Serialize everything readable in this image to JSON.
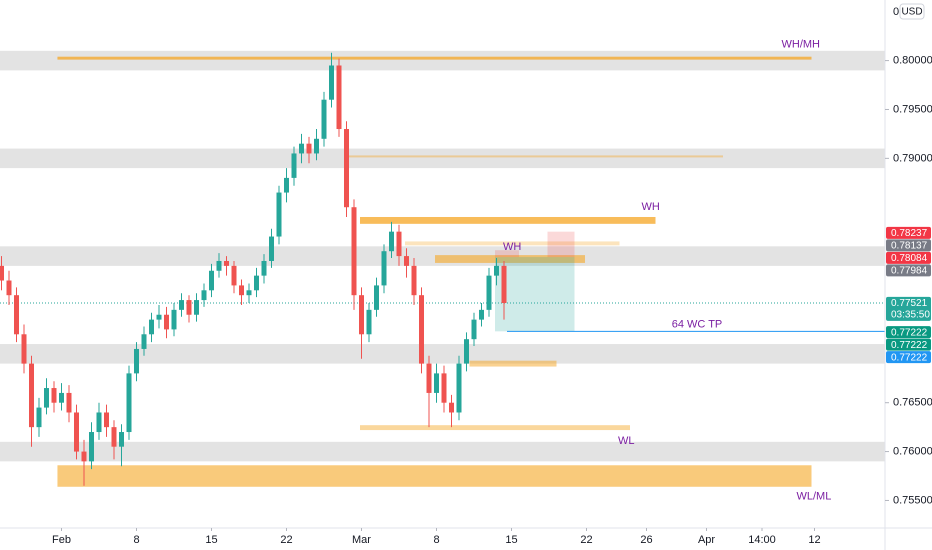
{
  "chart_data": {
    "type": "candlestick",
    "currency": "USD",
    "axis_top_label": "0.",
    "up_color": "#26a69a",
    "down_color": "#ef5350",
    "xlim": [
      -4.1,
      54.9
    ],
    "ylim": [
      0.753,
      0.8062
    ],
    "xticks": [
      {
        "value": 0,
        "label": "Feb"
      },
      {
        "value": 5,
        "label": "8"
      },
      {
        "value": 10,
        "label": "15"
      },
      {
        "value": 15,
        "label": "22"
      },
      {
        "value": 20,
        "label": "Mar"
      },
      {
        "value": 25,
        "label": "8"
      },
      {
        "value": 30,
        "label": "15"
      },
      {
        "value": 35,
        "label": "22"
      },
      {
        "value": 39,
        "label": "26"
      },
      {
        "value": 43,
        "label": "Apr"
      },
      {
        "value": 46.7,
        "label": "14:00"
      },
      {
        "value": 50.2,
        "label": "12"
      }
    ],
    "yticks": [
      {
        "value": 0.755,
        "label": "0.75500"
      },
      {
        "value": 0.76,
        "label": "0.76000"
      },
      {
        "value": 0.765,
        "label": "0.76500"
      },
      {
        "value": 0.79,
        "label": "0.79000"
      },
      {
        "value": 0.795,
        "label": "0.79500"
      },
      {
        "value": 0.8,
        "label": "0.80000"
      }
    ],
    "x": [
      -4,
      -3.5,
      -3,
      -2.5,
      -2,
      -1.5,
      -1,
      -0.5,
      0,
      0.5,
      1,
      1.5,
      2,
      2.5,
      3,
      3.5,
      4,
      4.5,
      5,
      5.5,
      6,
      6.5,
      7,
      7.5,
      8,
      8.5,
      9,
      9.5,
      10,
      10.5,
      11,
      11.5,
      12,
      12.5,
      13,
      13.5,
      14,
      14.5,
      15,
      15.5,
      16,
      16.5,
      17,
      17.5,
      18,
      18.5,
      19,
      19.5,
      20,
      20.5,
      21,
      21.5,
      22,
      22.5,
      23,
      23.5,
      24,
      24.5,
      25,
      25.5,
      26,
      26.5,
      27,
      27.5,
      28,
      28.5,
      29,
      29.5
    ],
    "open": [
      0.779,
      0.7775,
      0.776,
      0.772,
      0.769,
      0.7625,
      0.7645,
      0.7665,
      0.765,
      0.766,
      0.764,
      0.76,
      0.759,
      0.762,
      0.764,
      0.7625,
      0.7605,
      0.762,
      0.768,
      0.7705,
      0.772,
      0.7735,
      0.774,
      0.7725,
      0.7745,
      0.7755,
      0.774,
      0.7755,
      0.7765,
      0.7785,
      0.7795,
      0.779,
      0.777,
      0.776,
      0.7765,
      0.778,
      0.7795,
      0.782,
      0.7865,
      0.788,
      0.7905,
      0.7915,
      0.7905,
      0.792,
      0.796,
      0.7995,
      0.793,
      0.785,
      0.776,
      0.772,
      0.7745,
      0.777,
      0.7805,
      0.7825,
      0.78,
      0.779,
      0.776,
      0.769,
      0.766,
      0.768,
      0.765,
      0.764,
      0.769,
      0.7715,
      0.7735,
      0.7745,
      0.778,
      0.779
    ],
    "high": [
      0.78,
      0.7785,
      0.7768,
      0.773,
      0.7698,
      0.7655,
      0.7675,
      0.7672,
      0.767,
      0.7668,
      0.7648,
      0.7612,
      0.763,
      0.765,
      0.7648,
      0.7632,
      0.7628,
      0.7688,
      0.7712,
      0.7728,
      0.7742,
      0.775,
      0.7748,
      0.7752,
      0.7762,
      0.776,
      0.7762,
      0.7772,
      0.7792,
      0.7803,
      0.78,
      0.7795,
      0.7776,
      0.7772,
      0.7788,
      0.7802,
      0.7828,
      0.7872,
      0.789,
      0.7912,
      0.7925,
      0.7922,
      0.793,
      0.7968,
      0.8008,
      0.8002,
      0.7938,
      0.7858,
      0.7768,
      0.7752,
      0.7778,
      0.7812,
      0.7835,
      0.7832,
      0.7808,
      0.7798,
      0.7768,
      0.7698,
      0.769,
      0.7688,
      0.7658,
      0.7698,
      0.7722,
      0.7742,
      0.7752,
      0.7788,
      0.7798,
      0.7795
    ],
    "low": [
      0.7765,
      0.775,
      0.7712,
      0.768,
      0.7605,
      0.7615,
      0.7638,
      0.764,
      0.7642,
      0.763,
      0.7592,
      0.7565,
      0.7582,
      0.7612,
      0.7615,
      0.7592,
      0.7585,
      0.7612,
      0.7672,
      0.7698,
      0.7712,
      0.7726,
      0.7716,
      0.7718,
      0.7738,
      0.7732,
      0.7733,
      0.7748,
      0.7758,
      0.7778,
      0.778,
      0.7762,
      0.775,
      0.7752,
      0.7758,
      0.7772,
      0.7788,
      0.7812,
      0.7855,
      0.7872,
      0.7895,
      0.7895,
      0.7898,
      0.7912,
      0.7952,
      0.7922,
      0.784,
      0.7745,
      0.7695,
      0.7712,
      0.7738,
      0.7762,
      0.7798,
      0.779,
      0.7778,
      0.775,
      0.768,
      0.7625,
      0.765,
      0.764,
      0.7625,
      0.7632,
      0.7682,
      0.7708,
      0.7728,
      0.7738,
      0.777,
      0.7735
    ],
    "close": [
      0.7775,
      0.776,
      0.772,
      0.769,
      0.7625,
      0.7645,
      0.7665,
      0.765,
      0.766,
      0.764,
      0.76,
      0.759,
      0.762,
      0.764,
      0.7625,
      0.7605,
      0.762,
      0.768,
      0.7705,
      0.772,
      0.7735,
      0.774,
      0.7725,
      0.7745,
      0.7755,
      0.774,
      0.7755,
      0.7765,
      0.7785,
      0.7795,
      0.779,
      0.777,
      0.776,
      0.7765,
      0.778,
      0.7795,
      0.782,
      0.7865,
      0.788,
      0.7905,
      0.7915,
      0.7905,
      0.792,
      0.796,
      0.7995,
      0.793,
      0.785,
      0.776,
      0.772,
      0.7745,
      0.777,
      0.7805,
      0.7825,
      0.78,
      0.779,
      0.776,
      0.769,
      0.766,
      0.768,
      0.765,
      0.764,
      0.769,
      0.7715,
      0.7735,
      0.7745,
      0.778,
      0.779,
      0.7752
    ],
    "zones": [
      {
        "y": [
          0.799,
          0.801
        ]
      },
      {
        "y": [
          0.789,
          0.791
        ]
      },
      {
        "y": [
          0.779,
          0.781
        ]
      },
      {
        "y": [
          0.769,
          0.771
        ]
      },
      {
        "y": [
          0.759,
          0.761
        ]
      }
    ],
    "zone_color": "#d9d9d9",
    "level_color": "#f5a623",
    "label_color": "#7b1fa2",
    "levels": [
      {
        "x": [
          -0.27,
          50
        ],
        "y": [
          0.8001,
          0.8004
        ],
        "opacity": 0.75,
        "label": "WH/MH"
      },
      {
        "x": [
          18.9,
          44.1
        ],
        "y": [
          0.7901,
          0.7903
        ],
        "opacity": 0.4
      },
      {
        "x": [
          19.9,
          39.6
        ],
        "y": [
          0.7833,
          0.784
        ],
        "opacity": 0.75,
        "label": "WH"
      },
      {
        "x": [
          22.9,
          37.2
        ],
        "y": [
          0.7811,
          0.7815
        ],
        "opacity": 0.3,
        "label": "WH"
      },
      {
        "x": [
          24.9,
          34.9
        ],
        "y": [
          0.7793,
          0.7801
        ],
        "opacity": 0.6
      },
      {
        "x": [
          27.2,
          33
        ],
        "y": [
          0.7687,
          0.7693
        ],
        "opacity": 0.5
      },
      {
        "x": [
          19.9,
          37.9
        ],
        "y": [
          0.7622,
          0.7627
        ],
        "opacity": 0.45,
        "label": "WL"
      },
      {
        "x": [
          -0.27,
          50
        ],
        "y": [
          0.7564,
          0.7586
        ],
        "opacity": 0.6,
        "label": "WL/ML"
      }
    ],
    "position": {
      "x": [
        28.9,
        34.2
      ],
      "entry": 0.7799,
      "target": 0.7723,
      "stops": [
        {
          "x": [
            28.9,
            30.5
          ],
          "top": 0.7806
        },
        {
          "x": [
            32.4,
            34.2
          ],
          "top": 0.7825
        }
      ]
    },
    "tp_line": {
      "x_from": 29.7,
      "price": 0.7723,
      "label": "64 WC TP",
      "color": "#2196f3"
    },
    "current_price": 0.7752,
    "price_labels": [
      {
        "price": 0.78237,
        "color": "#f23645"
      },
      {
        "price": 0.78137,
        "color": "#787b86"
      },
      {
        "price": 0.78084,
        "color": "#f23645"
      },
      {
        "price": 0.77984,
        "color": "#787b86"
      },
      {
        "price": 0.77521,
        "color": "#26a69a",
        "countdown": "03:35:50"
      },
      {
        "price": 0.77222,
        "color": "#089981"
      },
      {
        "price": 0.77222,
        "color": "#089981"
      },
      {
        "price": 0.77222,
        "color": "#2196f3"
      }
    ]
  }
}
